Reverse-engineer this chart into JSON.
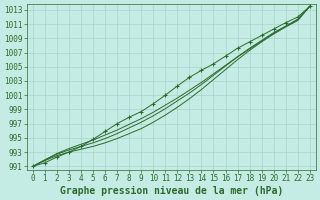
{
  "title": "Graphe pression niveau de la mer (hPa)",
  "x": [
    0,
    1,
    2,
    3,
    4,
    5,
    6,
    7,
    8,
    9,
    10,
    11,
    12,
    13,
    14,
    15,
    16,
    17,
    18,
    19,
    20,
    21,
    22,
    23
  ],
  "line1": [
    991.0,
    991.8,
    992.5,
    993.0,
    993.4,
    993.8,
    994.3,
    994.9,
    995.6,
    996.3,
    997.2,
    998.2,
    999.3,
    1000.5,
    1001.8,
    1003.2,
    1004.6,
    1006.0,
    1007.3,
    1008.5,
    1009.6,
    1010.6,
    1011.5,
    1013.5
  ],
  "line2": [
    991.0,
    991.9,
    992.7,
    993.3,
    993.8,
    994.3,
    994.9,
    995.6,
    996.4,
    997.2,
    998.1,
    999.1,
    1000.2,
    1001.3,
    1002.5,
    1003.8,
    1005.1,
    1006.4,
    1007.6,
    1008.7,
    1009.8,
    1010.7,
    1011.6,
    1013.5
  ],
  "line3": [
    991.0,
    991.9,
    992.8,
    993.5,
    994.1,
    994.7,
    995.4,
    996.1,
    996.9,
    997.7,
    998.6,
    999.6,
    1000.6,
    1001.7,
    1002.8,
    1004.0,
    1005.2,
    1006.4,
    1007.5,
    1008.6,
    1009.7,
    1010.7,
    1011.7,
    1013.5
  ],
  "line_marker": [
    991.0,
    991.5,
    992.3,
    993.0,
    993.8,
    994.8,
    995.9,
    997.0,
    997.9,
    998.7,
    999.8,
    1001.0,
    1002.3,
    1003.5,
    1004.5,
    1005.4,
    1006.5,
    1007.6,
    1008.5,
    1009.4,
    1010.3,
    1011.2,
    1012.0,
    1013.5
  ],
  "line_color": "#2d6a2d",
  "bg_color": "#c5ece4",
  "grid_color": "#a8d5c8",
  "ylim": [
    991,
    1013
  ],
  "xlim": [
    0,
    23
  ],
  "yticks": [
    991,
    993,
    995,
    997,
    999,
    1001,
    1003,
    1005,
    1007,
    1009,
    1011,
    1013
  ],
  "xticks": [
    0,
    1,
    2,
    3,
    4,
    5,
    6,
    7,
    8,
    9,
    10,
    11,
    12,
    13,
    14,
    15,
    16,
    17,
    18,
    19,
    20,
    21,
    22,
    23
  ],
  "title_fontsize": 7.0,
  "tick_fontsize": 5.5
}
